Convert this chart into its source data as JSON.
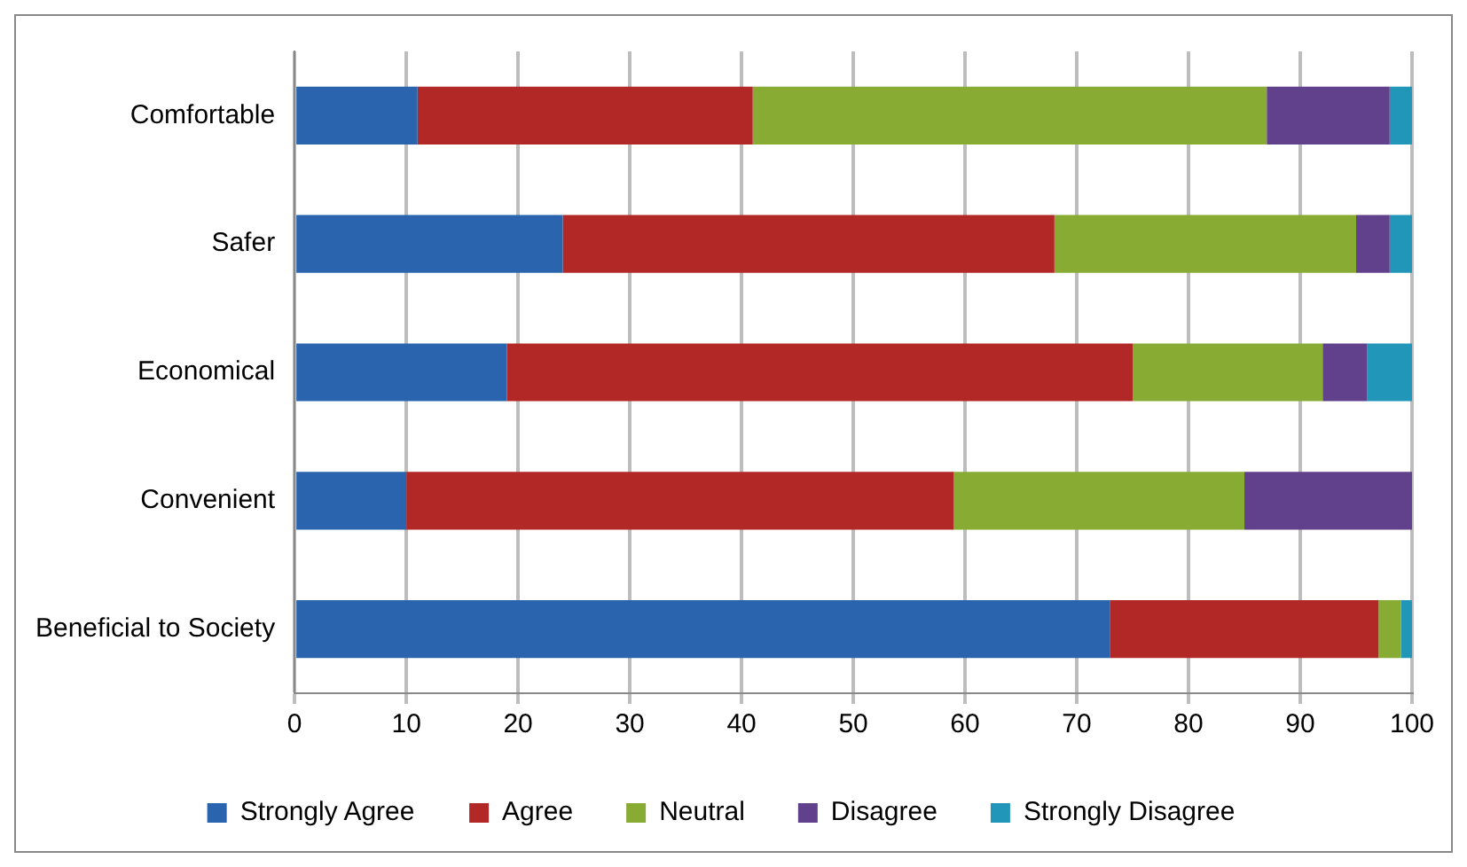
{
  "chart_data": {
    "type": "bar",
    "orientation": "horizontal",
    "stacked": true,
    "categories": [
      "Comfortable",
      "Safer",
      "Economical",
      "Convenient",
      "Beneficial to Society"
    ],
    "series": [
      {
        "name": "Strongly Agree",
        "color": "#2a64ae",
        "values": [
          11,
          24,
          19,
          10,
          73
        ]
      },
      {
        "name": "Agree",
        "color": "#b22826",
        "values": [
          30,
          44,
          56,
          49,
          24
        ]
      },
      {
        "name": "Neutral",
        "color": "#88ab34",
        "values": [
          46,
          27,
          17,
          26,
          2
        ]
      },
      {
        "name": "Disagree",
        "color": "#62418c",
        "values": [
          11,
          3,
          4,
          15,
          0
        ]
      },
      {
        "name": "Strongly Disagree",
        "color": "#2196b9",
        "values": [
          2,
          2,
          4,
          0,
          1
        ]
      }
    ],
    "xlim": [
      0,
      100
    ],
    "xticks": [
      0,
      10,
      20,
      30,
      40,
      50,
      60,
      70,
      80,
      90,
      100
    ],
    "grid": "x",
    "legend": "bottom"
  }
}
